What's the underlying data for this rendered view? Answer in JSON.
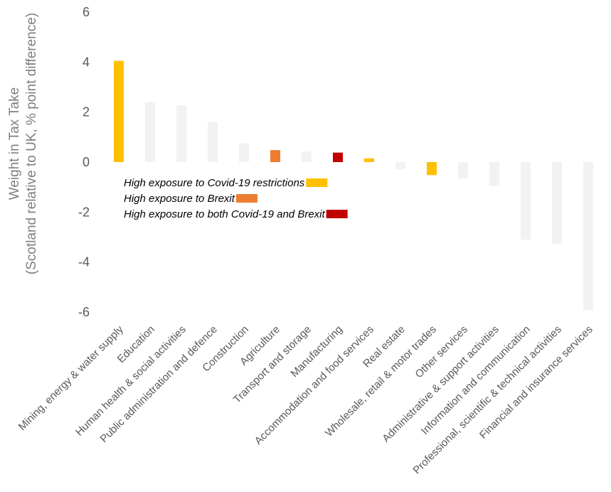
{
  "chart_data": {
    "type": "bar",
    "ylabel_lines": [
      "Weight in Tax Take",
      "(Scotland relative to UK, % point difference)"
    ],
    "xlabel": "",
    "ylim": [
      -6,
      6
    ],
    "yticks": [
      6,
      4,
      2,
      0,
      -2,
      -4,
      -6
    ],
    "grid": false,
    "categories": [
      "Mining, energy & water supply",
      "Education",
      "Human health & social activities",
      "Public administration and defence",
      "Construction",
      "Agriculture",
      "Transport and storage",
      "Manufacturing",
      "Accommodation and food services",
      "Real estate",
      "Wholesale, retail & motor trades",
      "Other services",
      "Administrative & support activities",
      "Information and communication",
      "Professional, scientific & technical activities",
      "Financial and insurance services"
    ],
    "values": [
      4.05,
      2.4,
      2.27,
      1.6,
      0.75,
      0.48,
      0.42,
      0.38,
      0.15,
      -0.28,
      -0.52,
      -0.65,
      -0.95,
      -3.1,
      -3.27,
      -5.92
    ],
    "exposure": [
      "covid",
      "none",
      "none",
      "none",
      "none",
      "brexit",
      "none",
      "both",
      "covid",
      "none",
      "covid",
      "none",
      "none",
      "none",
      "none",
      "none"
    ],
    "colors": {
      "covid": "#FFC000",
      "brexit": "#ED7D31",
      "both": "#C00000",
      "none": "#F2F2F2"
    },
    "legend": {
      "position": "center-left",
      "entries": [
        {
          "key": "covid",
          "label": "High exposure to Covid-19 restrictions"
        },
        {
          "key": "brexit",
          "label": "High exposure to Brexit"
        },
        {
          "key": "both",
          "label": "High exposure to both Covid-19 and Brexit"
        }
      ]
    }
  }
}
